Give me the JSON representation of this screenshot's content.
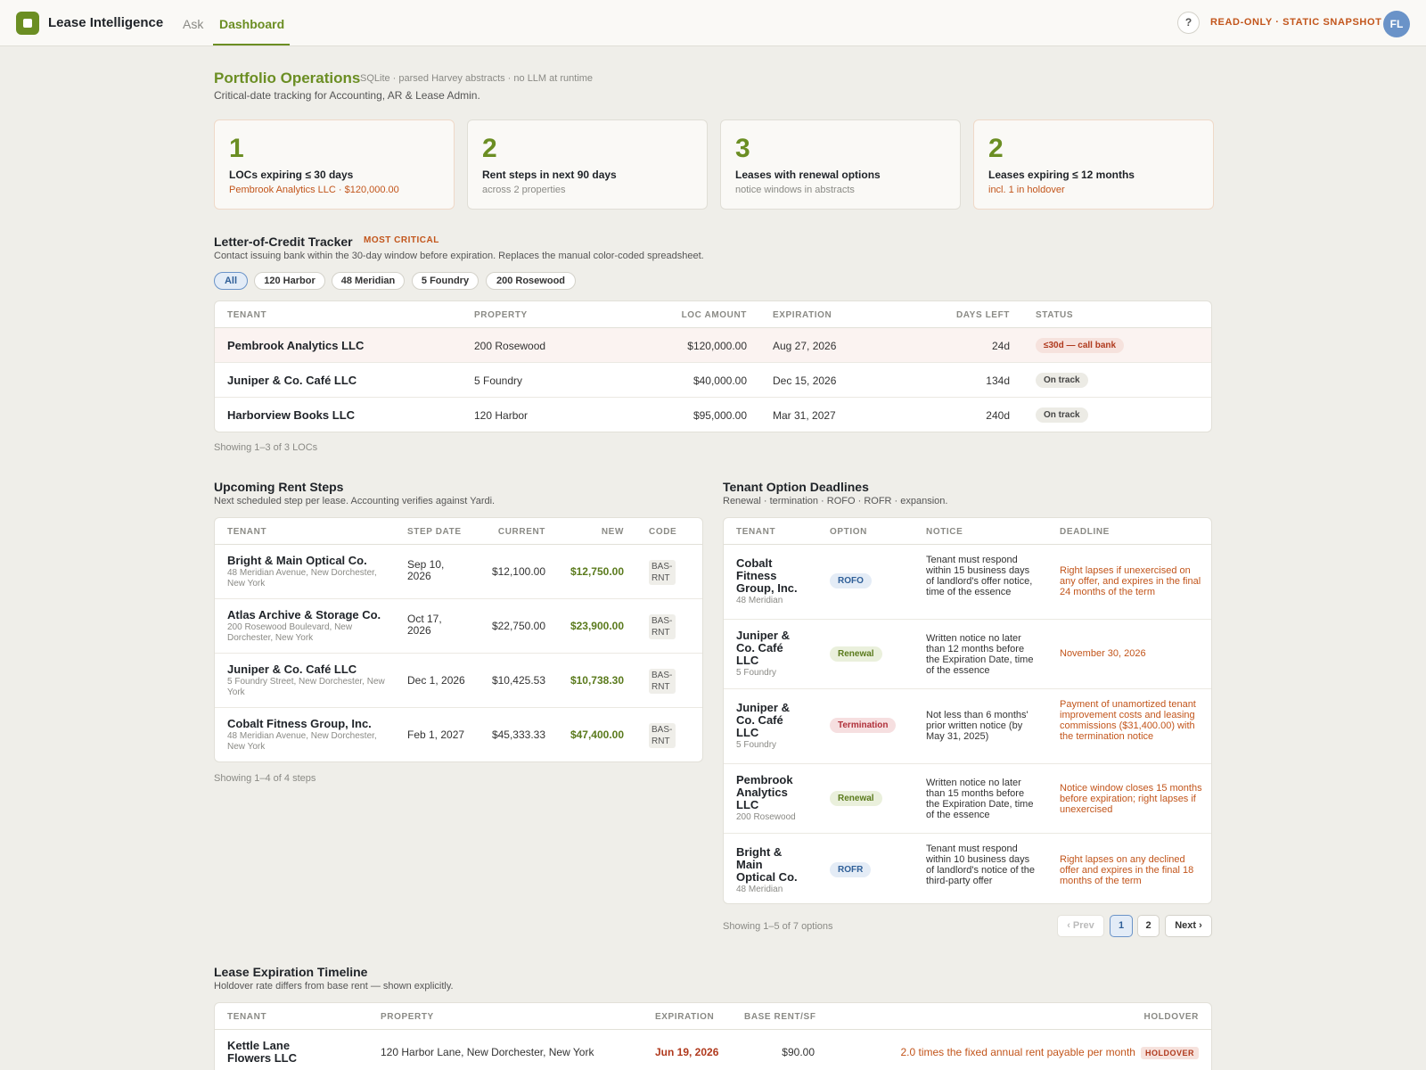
{
  "topbar": {
    "brand": "Lease Intelligence",
    "tabs": [
      {
        "label": "Ask"
      },
      {
        "label": "Dashboard"
      }
    ],
    "help": "?",
    "readonly": "READ-ONLY · STATIC SNAPSHOT",
    "avatar": "FL"
  },
  "header": {
    "title": "Portfolio Operations",
    "meta": "SQLite · parsed Harvey abstracts · no LLM at runtime",
    "subtitle": "Critical-date tracking for Accounting, AR & Lease Admin."
  },
  "kpis": [
    {
      "value": "1",
      "label": "LOCs expiring ≤ 30 days",
      "detail": "Pembrook Analytics LLC · $120,000.00"
    },
    {
      "value": "2",
      "label": "Rent steps in next 90 days",
      "detail": "across 2 properties"
    },
    {
      "value": "3",
      "label": "Leases with renewal options",
      "detail": "notice windows in abstracts"
    },
    {
      "value": "2",
      "label": "Leases expiring ≤ 12 months",
      "detail": "incl. 1 in holdover"
    }
  ],
  "loc": {
    "title": "Letter-of-Credit Tracker",
    "badge": "MOST CRITICAL",
    "desc": "Contact issuing bank within the 30-day window before expiration. Replaces the manual color-coded spreadsheet.",
    "filters": [
      "All",
      "120 Harbor",
      "48 Meridian",
      "5 Foundry",
      "200 Rosewood"
    ],
    "columns": [
      "Tenant",
      "Property",
      "LOC Amount",
      "Expiration",
      "Days Left",
      "Status"
    ],
    "rows": [
      {
        "tenant": "Pembrook Analytics LLC",
        "property": "200 Rosewood",
        "amount": "$120,000.00",
        "expiration": "Aug 27, 2026",
        "days": "24d",
        "status": "≤30d — call bank"
      },
      {
        "tenant": "Juniper & Co. Café LLC",
        "property": "5 Foundry",
        "amount": "$40,000.00",
        "expiration": "Dec 15, 2026",
        "days": "134d",
        "status": "On track"
      },
      {
        "tenant": "Harborview Books LLC",
        "property": "120 Harbor",
        "amount": "$95,000.00",
        "expiration": "Mar 31, 2027",
        "days": "240d",
        "status": "On track"
      }
    ],
    "showing": "Showing 1–3 of 3 LOCs"
  },
  "rent": {
    "title": "Upcoming Rent Steps",
    "desc": "Next scheduled step per lease. Accounting verifies against Yardi.",
    "columns": [
      "Tenant",
      "Step Date",
      "Current",
      "New",
      "Code"
    ],
    "rows": [
      {
        "tenant": "Bright & Main Optical Co.",
        "address": "48 Meridian Avenue, New Dorchester, New York",
        "date": "Sep 10, 2026",
        "current": "$12,100.00",
        "new": "$12,750.00",
        "code": "BAS-RNT"
      },
      {
        "tenant": "Atlas Archive & Storage Co.",
        "address": "200 Rosewood Boulevard, New Dorchester, New York",
        "date": "Oct 17, 2026",
        "current": "$22,750.00",
        "new": "$23,900.00",
        "code": "BAS-RNT"
      },
      {
        "tenant": "Juniper & Co. Café LLC",
        "address": "5 Foundry Street, New Dorchester, New York",
        "date": "Dec 1, 2026",
        "current": "$10,425.53",
        "new": "$10,738.30",
        "code": "BAS-RNT"
      },
      {
        "tenant": "Cobalt Fitness Group, Inc.",
        "address": "48 Meridian Avenue, New Dorchester, New York",
        "date": "Feb 1, 2027",
        "current": "$45,333.33",
        "new": "$47,400.00",
        "code": "BAS-RNT"
      }
    ],
    "showing": "Showing 1–4 of 4 steps"
  },
  "options": {
    "title": "Tenant Option Deadlines",
    "desc": "Renewal · termination · ROFO · ROFR · expansion.",
    "columns": [
      "Tenant",
      "Option",
      "Notice",
      "Deadline"
    ],
    "rows": [
      {
        "tenant": "Cobalt Fitness Group, Inc.",
        "property": "48 Meridian",
        "option": "ROFO",
        "notice": "Tenant must respond within 15 business days of landlord's offer notice, time of the essence",
        "deadline": "Right lapses if unexercised on any offer, and expires in the final 24 months of the term"
      },
      {
        "tenant": "Juniper & Co. Café LLC",
        "property": "5 Foundry",
        "option": "Renewal",
        "notice": "Written notice no later than 12 months before the Expiration Date, time of the essence",
        "deadline": "November 30, 2026"
      },
      {
        "tenant": "Juniper & Co. Café LLC",
        "property": "5 Foundry",
        "option": "Termination",
        "notice": "Not less than 6 months' prior written notice (by May 31, 2025)",
        "deadline": "Payment of unamortized tenant improvement costs and leasing commissions ($31,400.00) with the termination notice"
      },
      {
        "tenant": "Pembrook Analytics LLC",
        "property": "200 Rosewood",
        "option": "Renewal",
        "notice": "Written notice no later than 15 months before the Expiration Date, time of the essence",
        "deadline": "Notice window closes 15 months before expiration; right lapses if unexercised"
      },
      {
        "tenant": "Bright & Main Optical Co.",
        "property": "48 Meridian",
        "option": "ROFR",
        "notice": "Tenant must respond within 10 business days of landlord's notice of the third-party offer",
        "deadline": "Right lapses on any declined offer and expires in the final 18 months of the term"
      }
    ],
    "showing": "Showing 1–5 of 7 options",
    "pagination": {
      "prev": "‹ Prev",
      "pages": [
        "1",
        "2"
      ],
      "next": "Next ›"
    }
  },
  "expiry": {
    "title": "Lease Expiration Timeline",
    "desc": "Holdover rate differs from base rent — shown explicitly.",
    "columns": [
      "Tenant",
      "Property",
      "Expiration",
      "Base Rent/SF",
      "Holdover"
    ],
    "rows": [
      {
        "tenant": "Kettle Lane Flowers LLC",
        "property": "120 Harbor Lane, New Dorchester, New York",
        "expiration": "Jun 19, 2026",
        "rent": "$90.00",
        "holdover": "2.0 times the fixed annual rent payable per month",
        "badge": "HOLDOVER"
      }
    ]
  },
  "colors": {
    "accent": "#6b8e23",
    "warning": "#c2551b",
    "danger": "#b03a1e",
    "info": "#2f5f98"
  }
}
